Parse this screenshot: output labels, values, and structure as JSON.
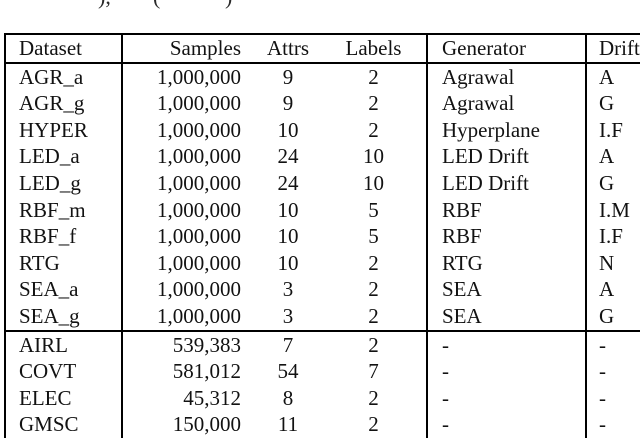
{
  "top_fragment": {
    "pieces": [
      "),",
      "(",
      ")"
    ]
  },
  "table": {
    "columns": [
      "Dataset",
      "Samples",
      "Attrs",
      "Labels",
      "Generator",
      "Drift"
    ],
    "row_groups": [
      [
        [
          "AGR_a",
          "1,000,000",
          "9",
          "2",
          "Agrawal",
          "A"
        ],
        [
          "AGR_g",
          "1,000,000",
          "9",
          "2",
          "Agrawal",
          "G"
        ],
        [
          "HYPER",
          "1,000,000",
          "10",
          "2",
          "Hyperplane",
          "I.F"
        ],
        [
          "LED_a",
          "1,000,000",
          "24",
          "10",
          "LED Drift",
          "A"
        ],
        [
          "LED_g",
          "1,000,000",
          "24",
          "10",
          "LED Drift",
          "G"
        ],
        [
          "RBF_m",
          "1,000,000",
          "10",
          "5",
          "RBF",
          "I.M"
        ],
        [
          "RBF_f",
          "1,000,000",
          "10",
          "5",
          "RBF",
          "I.F"
        ],
        [
          "RTG",
          "1,000,000",
          "10",
          "2",
          "RTG",
          "N"
        ],
        [
          "SEA_a",
          "1,000,000",
          "3",
          "2",
          "SEA",
          "A"
        ],
        [
          "SEA_g",
          "1,000,000",
          "3",
          "2",
          "SEA",
          "G"
        ]
      ],
      [
        [
          "AIRL",
          "539,383",
          "7",
          "2",
          "-",
          "-"
        ],
        [
          "COVT",
          "581,012",
          "54",
          "7",
          "-",
          "-"
        ],
        [
          "ELEC",
          "45,312",
          "8",
          "2",
          "-",
          "-"
        ],
        [
          "GMSC",
          "150,000",
          "11",
          "2",
          "-",
          "-"
        ]
      ]
    ]
  },
  "colors": {
    "text": "#121212",
    "border": "#000000",
    "background": "#ffffff"
  }
}
